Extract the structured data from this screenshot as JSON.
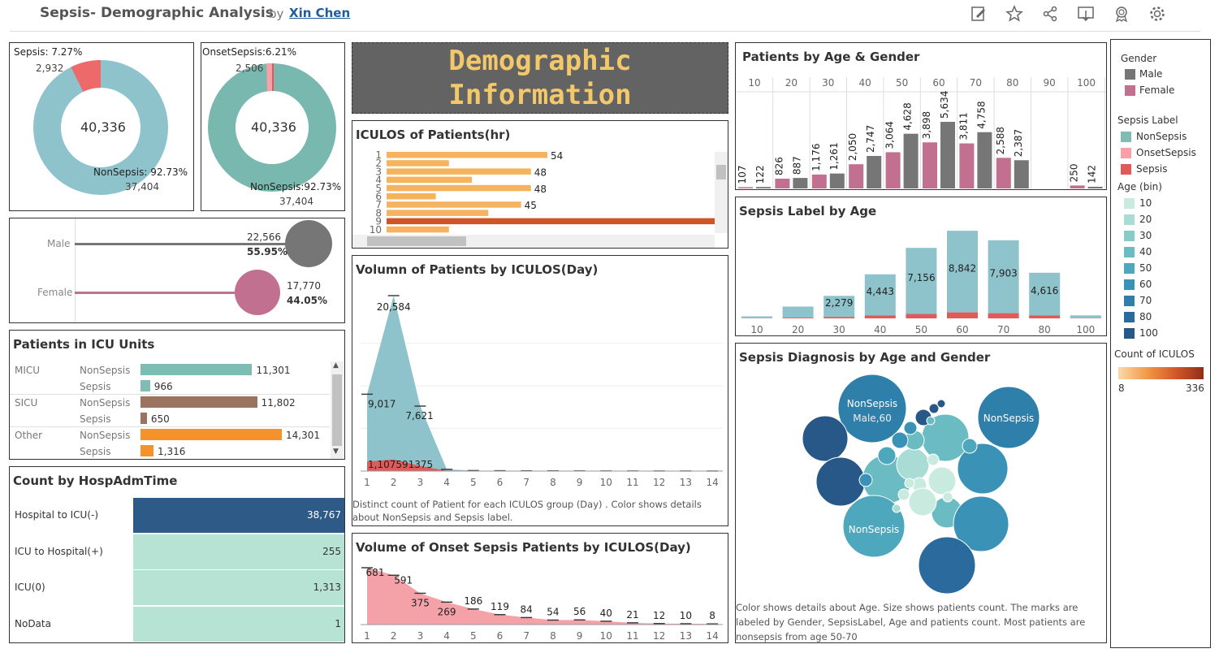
{
  "header": {
    "title": "Sepsis- Demographic Analysis",
    "by": "by",
    "author": "Xin Chen"
  },
  "toolbar": [
    "edit-icon",
    "star-icon",
    "share-icon",
    "download-icon",
    "badge-icon",
    "gear-icon"
  ],
  "donut1": {
    "label_top": "Sepsis:  7.27%",
    "count_top": "2,932",
    "center": "40,336",
    "label_bottom": "NonSepsis: 92.73%",
    "count_bottom": "37,404",
    "sepsis_fraction": 0.0727
  },
  "donut2": {
    "label_top": "OnsetSepsis:6.21%",
    "count_top": "2,506",
    "center": "40,336",
    "label_bottom": "NonSepsis:92.73%",
    "count_bottom": "37,404"
  },
  "gender": {
    "male": {
      "label": "Male",
      "count": "22,566",
      "pct": "55.95%"
    },
    "female": {
      "label": "Female",
      "count": "17,770",
      "pct": "44.05%"
    }
  },
  "demo_banner": {
    "line1": "Demographic",
    "line2": "Information"
  },
  "iculos_hr": {
    "title": "ICULOS of Patients(hr)",
    "rows": [
      {
        "y": "1",
        "label": "54",
        "v": 0.49
      },
      {
        "y": "2",
        "label": "",
        "v": 0.19
      },
      {
        "y": "3",
        "label": "48",
        "v": 0.44
      },
      {
        "y": "4",
        "label": "",
        "v": 0.26
      },
      {
        "y": "5",
        "label": "48",
        "v": 0.44
      },
      {
        "y": "6",
        "label": "",
        "v": 0.15
      },
      {
        "y": "7",
        "label": "45",
        "v": 0.41
      },
      {
        "y": "8",
        "label": "",
        "v": 0.31
      },
      {
        "y": "9",
        "label": "",
        "v": 1.0
      },
      {
        "y": "10",
        "label": "",
        "v": 0.19
      }
    ]
  },
  "icu_units": {
    "title": "Patients in ICU Units",
    "rows": [
      {
        "unit": "MICU",
        "label": "NonSepsis",
        "value": "11,301",
        "v": 11301,
        "color": "#7fbcb4"
      },
      {
        "unit": "",
        "label": "Sepsis",
        "value": "966",
        "v": 966,
        "color": "#7fbcb4"
      },
      {
        "unit": "SICU",
        "label": "NonSepsis",
        "value": "11,802",
        "v": 11802,
        "color": "#9b7460"
      },
      {
        "unit": "",
        "label": "Sepsis",
        "value": "650",
        "v": 650,
        "color": "#9b7460"
      },
      {
        "unit": "Other",
        "label": "NonSepsis",
        "value": "14,301",
        "v": 14301,
        "color": "#f4922b"
      },
      {
        "unit": "",
        "label": "Sepsis",
        "value": "1,316",
        "v": 1316,
        "color": "#f4922b"
      }
    ]
  },
  "hosp_adm": {
    "title": "Count by HospAdmTime",
    "rows": [
      {
        "label": "Hospital to ICU(-)",
        "value": "38,767",
        "dark": true
      },
      {
        "label": "ICU to Hospital(+)",
        "value": "255",
        "dark": false
      },
      {
        "label": "ICU(0)",
        "value": "1,313",
        "dark": false
      },
      {
        "label": "NoData",
        "value": "1",
        "dark": false
      }
    ]
  },
  "volumn_day": {
    "title": "Volumn of Patients by ICULOS(Day)",
    "labels": [
      "20,584",
      "9,017",
      "7,621",
      "1,107591375"
    ],
    "caption": "Distinct count of Patient  for each ICULOS group (Day) .  Color shows details about NonSepsis and Sepsis label."
  },
  "onset_day": {
    "title": "Volume of Onset Sepsis Patients by ICULOS(Day)"
  },
  "age_gender": {
    "title": "Patients by Age & Gender",
    "bins": [
      "10",
      "20",
      "30",
      "40",
      "50",
      "60",
      "70",
      "80",
      "90",
      "100"
    ]
  },
  "sepsis_age": {
    "title": "Sepsis Label by Age"
  },
  "bubble": {
    "title": "Sepsis Diagnosis by Age and Gender",
    "labels": [
      "NonSepsis",
      "Male,60",
      "NonSepsis",
      "NonSepsis"
    ],
    "caption": "Color shows details about Age.  Size shows patients count. The marks are labeled by Gender, SepsisLabel, Age and patients count. Most patients are nonsepsis from age 50-70"
  },
  "legend": {
    "gender_title": "Gender",
    "gender": [
      {
        "label": "Male",
        "color": "#767676"
      },
      {
        "label": "Female",
        "color": "#c27090"
      }
    ],
    "sepsis_title": "Sepsis Label",
    "sepsis": [
      {
        "label": "NonSepsis",
        "color": "#7fbcb4"
      },
      {
        "label": "OnsetSepsis",
        "color": "#f8a0a8"
      },
      {
        "label": "Sepsis",
        "color": "#e05a5a"
      }
    ],
    "age_title": "Age (bin)",
    "ages": [
      {
        "label": "10",
        "color": "#c9eadf"
      },
      {
        "label": "20",
        "color": "#a8dcd4"
      },
      {
        "label": "30",
        "color": "#88ccc8"
      },
      {
        "label": "40",
        "color": "#6bbcc2"
      },
      {
        "label": "50",
        "color": "#4ea8bd"
      },
      {
        "label": "60",
        "color": "#3a93b6"
      },
      {
        "label": "70",
        "color": "#2f7fab"
      },
      {
        "label": "80",
        "color": "#2b6a9c"
      },
      {
        "label": "100",
        "color": "#285887"
      }
    ],
    "count_title": "Count of ICULOS",
    "count_min": "8",
    "count_max": "336"
  },
  "chart_data": [
    {
      "type": "bar",
      "title": "Patients by Age & Gender",
      "categories": [
        "10",
        "10",
        "20",
        "20",
        "30",
        "30",
        "40",
        "40",
        "50",
        "50",
        "60",
        "60",
        "70",
        "70",
        "80",
        "80",
        "100",
        "100"
      ],
      "series": [
        {
          "name": "Count",
          "values": [
            107,
            122,
            826,
            887,
            1176,
            1261,
            2050,
            2747,
            3064,
            4628,
            3898,
            5634,
            3811,
            4758,
            2588,
            2387,
            250,
            142
          ]
        }
      ],
      "labels": [
        "107",
        "122",
        "826",
        "887",
        "1,176",
        "1,261",
        "2,050",
        "2,747",
        "3,064",
        "4,628",
        "3,898",
        "5,634",
        "3,811",
        "4,758",
        "2,588",
        "2,387",
        "250",
        "142"
      ],
      "colors": [
        "#c27090",
        "#767676",
        "#c27090",
        "#767676",
        "#c27090",
        "#767676",
        "#c27090",
        "#767676",
        "#c27090",
        "#767676",
        "#c27090",
        "#767676",
        "#c27090",
        "#767676",
        "#c27090",
        "#767676",
        "#c27090",
        "#767676"
      ]
    },
    {
      "type": "bar",
      "title": "Sepsis Label by Age",
      "categories": [
        "10",
        "20",
        "30",
        "40",
        "50",
        "60",
        "70",
        "80",
        "100"
      ],
      "series": [
        {
          "name": "NonSepsis",
          "values": [
            200,
            1200,
            2279,
            4443,
            7156,
            8842,
            7903,
            4616,
            300
          ]
        },
        {
          "name": "Sepsis",
          "values": [
            20,
            80,
            160,
            330,
            480,
            650,
            560,
            330,
            30
          ]
        }
      ],
      "labels": [
        "",
        "",
        "2,279",
        "4,443",
        "7,156",
        "8,842",
        "7,903",
        "4,616",
        ""
      ]
    },
    {
      "type": "area",
      "title": "Volumn of Patients by ICULOS(Day)",
      "x": [
        1,
        2,
        3,
        4,
        5,
        6,
        7,
        8,
        9,
        10,
        11,
        12,
        13,
        14
      ],
      "series": [
        {
          "name": "NonSepsis",
          "values": [
            9017,
            20584,
            7621,
            200,
            60,
            40,
            30,
            25,
            20,
            15,
            12,
            10,
            8,
            6
          ]
        },
        {
          "name": "Sepsis",
          "values": [
            1107,
            1375,
            591,
            40,
            20,
            15,
            10,
            8,
            6,
            5,
            4,
            3,
            2,
            2
          ]
        }
      ]
    },
    {
      "type": "area",
      "title": "Volume of Onset Sepsis Patients by ICULOS(Day)",
      "x": [
        1,
        2,
        3,
        4,
        5,
        6,
        7,
        8,
        9,
        10,
        11,
        12,
        13,
        14
      ],
      "series": [
        {
          "name": "OnsetSepsis",
          "values": [
            681,
            591,
            375,
            269,
            186,
            119,
            84,
            54,
            56,
            40,
            21,
            12,
            10,
            8
          ]
        }
      ],
      "labels": [
        "681",
        "591",
        "375",
        "269",
        "186",
        "119",
        "84",
        "54",
        "56",
        "40",
        "21",
        "12",
        "10",
        "8"
      ]
    }
  ]
}
